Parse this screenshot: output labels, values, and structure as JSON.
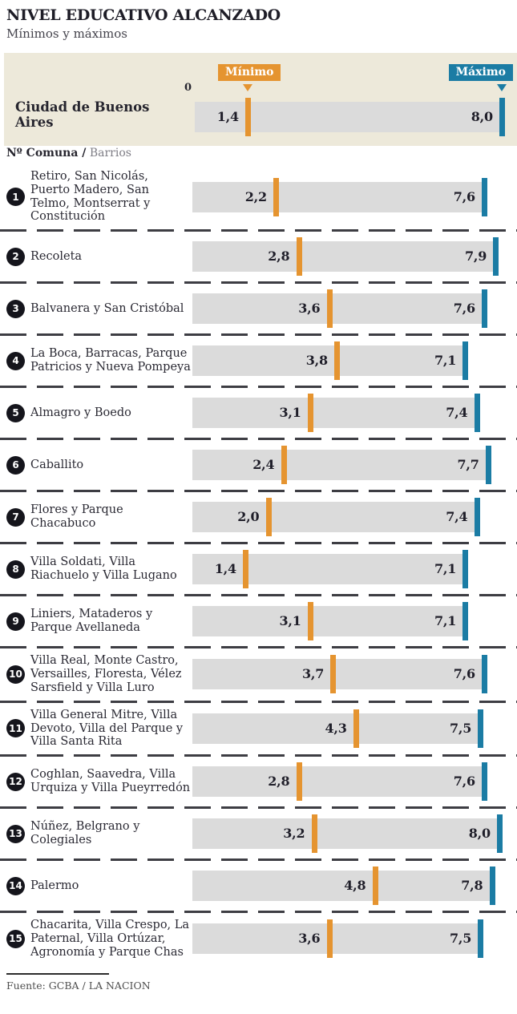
{
  "header": {
    "title": "NIVEL EDUCATIVO ALCANZADO",
    "subtitle": "Mínimos y máximos",
    "legend_min_label": "Mínimo",
    "legend_max_label": "Máximo",
    "zero_label": "0",
    "city_label": "Ciudad de Buenos Aires"
  },
  "list_header": {
    "strong": "Nº Comuna /",
    "light": "Barrios"
  },
  "footer": {
    "source": "Fuente: GCBA / LA NACION"
  },
  "colors": {
    "min_accent": "#E59430",
    "max_accent": "#1B7CA4",
    "panel_bg": "#EDE9DA",
    "track_gray": "#DBDBDB",
    "ink": "#26252E",
    "separator": "#3D3D43"
  },
  "chart_data": {
    "type": "bar",
    "variant": "range-min-max",
    "title": "NIVEL EDUCATIVO ALCANZADO",
    "subtitle": "Mínimos y máximos",
    "xlabel": "",
    "ylabel": "",
    "xlim": [
      0,
      8.2
    ],
    "grid": false,
    "legend": [
      "Mínimo",
      "Máximo"
    ],
    "legend_position": "top",
    "overall": {
      "label": "Ciudad de Buenos Aires",
      "min": 1.4,
      "max": 8.0,
      "min_label": "1,4",
      "max_label": "8,0"
    },
    "categories": [
      "Retiro, San Nicolás, Puerto Madero, San Telmo, Montserrat y Constitución",
      "Recoleta",
      "Balvanera y San Cristóbal",
      "La Boca, Barracas, Parque Patricios y Nueva Pompeya",
      "Almagro y Boedo",
      "Caballito",
      "Flores y Parque Chacabuco",
      "Villa Soldati, Villa Riachuelo y Villa Lugano",
      "Liniers, Mataderos y Parque Avellaneda",
      "Villa Real, Monte Castro, Versailles, Floresta, Vélez Sarsfield y Villa Luro",
      "Villa General Mitre, Villa Devoto, Villa del Parque y Villa Santa Rita",
      "Coghlan, Saavedra, Villa Urquiza y Villa Pueyrredón",
      "Núñez, Belgrano y Colegiales",
      "Palermo",
      "Chacarita, Villa Crespo, La Paternal, Villa Ortúzar, Agronomía y Parque Chas"
    ],
    "series": [
      {
        "name": "Mínimo",
        "values": [
          2.2,
          2.8,
          3.6,
          3.8,
          3.1,
          2.4,
          2.0,
          1.4,
          3.1,
          3.7,
          4.3,
          2.8,
          3.2,
          4.8,
          3.6
        ]
      },
      {
        "name": "Máximo",
        "values": [
          7.6,
          7.9,
          7.6,
          7.1,
          7.4,
          7.7,
          7.4,
          7.1,
          7.1,
          7.6,
          7.5,
          7.6,
          8.0,
          7.8,
          7.5
        ]
      }
    ],
    "rows": [
      {
        "num": "1",
        "label": "Retiro, San Nicolás, Puerto Madero, San Telmo, Montserrat y Constitución",
        "min": 2.2,
        "max": 7.6,
        "min_label": "2,2",
        "max_label": "7,6"
      },
      {
        "num": "2",
        "label": "Recoleta",
        "min": 2.8,
        "max": 7.9,
        "min_label": "2,8",
        "max_label": "7,9"
      },
      {
        "num": "3",
        "label": "Balvanera y San Cristóbal",
        "min": 3.6,
        "max": 7.6,
        "min_label": "3,6",
        "max_label": "7,6"
      },
      {
        "num": "4",
        "label": "La Boca, Barracas, Parque Patricios y Nueva Pompeya",
        "min": 3.8,
        "max": 7.1,
        "min_label": "3,8",
        "max_label": "7,1"
      },
      {
        "num": "5",
        "label": "Almagro y Boedo",
        "min": 3.1,
        "max": 7.4,
        "min_label": "3,1",
        "max_label": "7,4"
      },
      {
        "num": "6",
        "label": "Caballito",
        "min": 2.4,
        "max": 7.7,
        "min_label": "2,4",
        "max_label": "7,7"
      },
      {
        "num": "7",
        "label": "Flores y Parque Chacabuco",
        "min": 2.0,
        "max": 7.4,
        "min_label": "2,0",
        "max_label": "7,4"
      },
      {
        "num": "8",
        "label": "Villa Soldati, Villa Riachuelo y Villa Lugano",
        "min": 1.4,
        "max": 7.1,
        "min_label": "1,4",
        "max_label": "7,1"
      },
      {
        "num": "9",
        "label": "Liniers, Mataderos y Parque Avellaneda",
        "min": 3.1,
        "max": 7.1,
        "min_label": "3,1",
        "max_label": "7,1"
      },
      {
        "num": "10",
        "label": "Villa Real, Monte Castro, Versailles, Floresta, Vélez Sarsfield y Villa Luro",
        "min": 3.7,
        "max": 7.6,
        "min_label": "3,7",
        "max_label": "7,6"
      },
      {
        "num": "11",
        "label": "Villa General Mitre, Villa Devoto, Villa del Parque y Villa Santa Rita",
        "min": 4.3,
        "max": 7.5,
        "min_label": "4,3",
        "max_label": "7,5"
      },
      {
        "num": "12",
        "label": "Coghlan, Saavedra, Villa Urquiza y Villa Pueyrredón",
        "min": 2.8,
        "max": 7.6,
        "min_label": "2,8",
        "max_label": "7,6"
      },
      {
        "num": "13",
        "label": "Núñez, Belgrano y Colegiales",
        "min": 3.2,
        "max": 8.0,
        "min_label": "3,2",
        "max_label": "8,0"
      },
      {
        "num": "14",
        "label": "Palermo",
        "min": 4.8,
        "max": 7.8,
        "min_label": "4,8",
        "max_label": "7,8"
      },
      {
        "num": "15",
        "label": "Chacarita, Villa Crespo, La Paternal, Villa Ortúzar, Agronomía y Parque Chas",
        "min": 3.6,
        "max": 7.5,
        "min_label": "3,6",
        "max_label": "7,5"
      }
    ]
  }
}
